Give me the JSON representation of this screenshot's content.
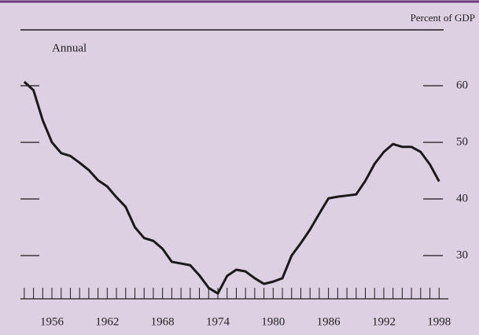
{
  "chart_data": {
    "type": "line",
    "unit_label": "Percent of GDP",
    "annotation": "Annual",
    "x": [
      1953,
      1954,
      1955,
      1956,
      1957,
      1958,
      1959,
      1960,
      1961,
      1962,
      1963,
      1964,
      1965,
      1966,
      1967,
      1968,
      1969,
      1970,
      1971,
      1972,
      1973,
      1974,
      1975,
      1976,
      1977,
      1978,
      1979,
      1980,
      1981,
      1982,
      1983,
      1984,
      1985,
      1986,
      1987,
      1988,
      1989,
      1990,
      1991,
      1992,
      1993,
      1994,
      1995,
      1996,
      1997,
      1998
    ],
    "series": [
      {
        "color": "#1a1a1a",
        "values": [
          60.7,
          59.2,
          53.9,
          50.0,
          48.1,
          47.6,
          46.4,
          45.1,
          43.3,
          42.2,
          40.3,
          38.6,
          35.0,
          33.1,
          32.6,
          31.2,
          28.9,
          28.6,
          28.3,
          26.5,
          24.3,
          23.3,
          26.4,
          27.5,
          27.2,
          26.0,
          25.0,
          25.4,
          26.0,
          30.0,
          32.2,
          34.6,
          37.4,
          40.1,
          40.4,
          40.6,
          40.8,
          43.2,
          46.2,
          48.3,
          49.7,
          49.2,
          49.2,
          48.3,
          46.1,
          43.1
        ]
      }
    ],
    "xlim": [
      1952.5,
      1999
    ],
    "xticks": [
      1956,
      1962,
      1968,
      1974,
      1980,
      1986,
      1992,
      1998
    ],
    "xminorticks": [
      1953,
      1954,
      1955,
      1956,
      1957,
      1958,
      1959,
      1960,
      1961,
      1962,
      1963,
      1964,
      1965,
      1966,
      1967,
      1968,
      1969,
      1970,
      1971,
      1972,
      1973,
      1974,
      1975,
      1976,
      1977,
      1978,
      1979,
      1980,
      1981,
      1982,
      1983,
      1984,
      1985,
      1986,
      1987,
      1988,
      1989,
      1990,
      1991,
      1992,
      1993,
      1994,
      1995,
      1996,
      1997,
      1998
    ],
    "ylim": [
      22,
      64
    ],
    "yticks": [
      30,
      40,
      50,
      60
    ],
    "background": "#ddd0e2",
    "frame_color": "#6b3b7a"
  }
}
